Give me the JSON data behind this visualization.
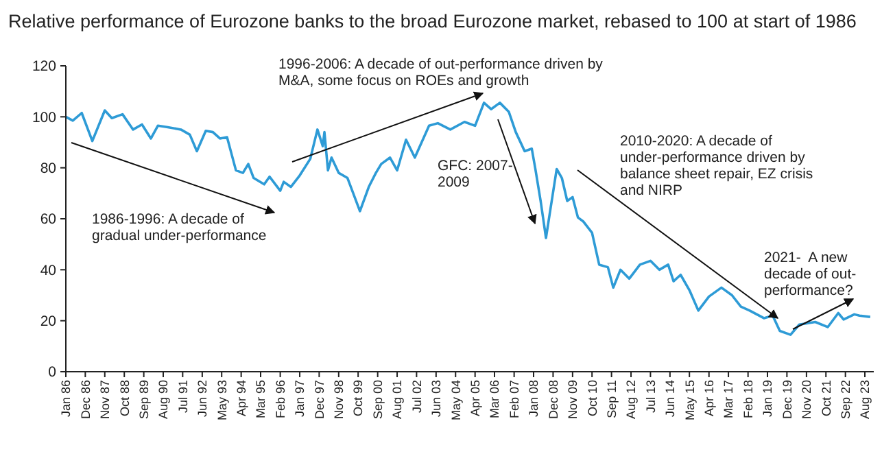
{
  "chart_data": {
    "type": "line",
    "title": "Relative performance of Eurozone banks to the broad Eurozone market, rebased to 100 at start of 1986",
    "x": [
      "1986-01",
      "1986-05",
      "1986-10",
      "1987-04",
      "1987-11",
      "1988-03",
      "1988-09",
      "1989-03",
      "1989-08",
      "1990-01",
      "1990-05",
      "1990-10",
      "1991-06",
      "1991-11",
      "1992-03",
      "1992-08",
      "1992-12",
      "1993-04",
      "1993-08",
      "1994-01",
      "1994-05",
      "1994-08",
      "1994-11",
      "1995-05",
      "1995-08",
      "1996-02",
      "1996-04",
      "1996-08",
      "1997-01",
      "1997-07",
      "1997-11",
      "1998-02",
      "1998-03",
      "1998-05",
      "1998-07",
      "1998-11",
      "1999-04",
      "1999-11",
      "2000-04",
      "2000-08",
      "2000-11",
      "2001-04",
      "2001-08",
      "2002-01",
      "2002-06",
      "2003-02",
      "2003-07",
      "2004-02",
      "2004-10",
      "2005-04",
      "2005-09",
      "2006-01",
      "2006-06",
      "2006-11",
      "2007-03",
      "2007-08",
      "2007-12",
      "2008-02",
      "2008-05",
      "2008-08",
      "2008-10",
      "2009-02",
      "2009-05",
      "2009-08",
      "2009-11",
      "2010-02",
      "2010-05",
      "2010-10",
      "2011-02",
      "2011-07",
      "2011-10",
      "2012-02",
      "2012-07",
      "2013-01",
      "2013-07",
      "2013-12",
      "2014-05",
      "2014-08",
      "2014-12",
      "2015-05",
      "2015-10",
      "2016-04",
      "2016-11",
      "2017-05",
      "2017-10",
      "2018-03",
      "2018-11",
      "2019-04",
      "2019-08",
      "2020-02",
      "2020-07",
      "2021-04",
      "2021-11",
      "2022-05",
      "2022-08",
      "2023-02",
      "2023-05",
      "2023-11"
    ],
    "series": [
      {
        "color": "#2e9bd6",
        "values": [
          100,
          98.5,
          101.5,
          90.5,
          102.5,
          99.5,
          101,
          95,
          97,
          91.5,
          96.5,
          96,
          95,
          93,
          86.5,
          94.5,
          94,
          91.5,
          92,
          79,
          78,
          81.5,
          76,
          73.5,
          76.5,
          71,
          74.5,
          72.5,
          77,
          83.5,
          95,
          88.5,
          94,
          79,
          84,
          78,
          76,
          63,
          72.5,
          78,
          81.5,
          84,
          79,
          91,
          84,
          96.5,
          97.5,
          95,
          98,
          96.5,
          105.5,
          103,
          105.5,
          102,
          94,
          86.5,
          87.5,
          79.5,
          67,
          52.5,
          61.5,
          79.5,
          76,
          67,
          68.5,
          60.5,
          59,
          54.5,
          42,
          41,
          33,
          40,
          36.5,
          42,
          43.5,
          40,
          42,
          35.5,
          38,
          32,
          24,
          29.5,
          33,
          30,
          25.5,
          24,
          21,
          22,
          16,
          14.5,
          18.5,
          19.5,
          17.5,
          23,
          20.5,
          22.5,
          22,
          21.5
        ]
      }
    ],
    "xlim": [
      "1986-01",
      "2024-01"
    ],
    "xticks": [
      {
        "value": "1986-01",
        "label": "Jan 86"
      },
      {
        "value": "1986-12",
        "label": "Dec 86"
      },
      {
        "value": "1987-11",
        "label": "Nov 87"
      },
      {
        "value": "1988-10",
        "label": "Oct 88"
      },
      {
        "value": "1989-09",
        "label": "Sep 89"
      },
      {
        "value": "1990-08",
        "label": "Aug 90"
      },
      {
        "value": "1991-07",
        "label": "Jul 91"
      },
      {
        "value": "1992-06",
        "label": "Jun 92"
      },
      {
        "value": "1993-05",
        "label": "May 93"
      },
      {
        "value": "1994-04",
        "label": "Apr 94"
      },
      {
        "value": "1995-03",
        "label": "Mar 95"
      },
      {
        "value": "1996-02",
        "label": "Feb 96"
      },
      {
        "value": "1997-01",
        "label": "Jan 97"
      },
      {
        "value": "1997-12",
        "label": "Dec 97"
      },
      {
        "value": "1998-11",
        "label": "Nov 98"
      },
      {
        "value": "1999-10",
        "label": "Oct 99"
      },
      {
        "value": "2000-09",
        "label": "Sep 00"
      },
      {
        "value": "2001-08",
        "label": "Aug 01"
      },
      {
        "value": "2002-07",
        "label": "Jul 02"
      },
      {
        "value": "2003-06",
        "label": "Jun 03"
      },
      {
        "value": "2004-05",
        "label": "May 04"
      },
      {
        "value": "2005-04",
        "label": "Apr 05"
      },
      {
        "value": "2006-03",
        "label": "Mar 06"
      },
      {
        "value": "2007-02",
        "label": "Feb 07"
      },
      {
        "value": "2008-01",
        "label": "Jan 08"
      },
      {
        "value": "2008-12",
        "label": "Dec 08"
      },
      {
        "value": "2009-11",
        "label": "Nov 09"
      },
      {
        "value": "2010-10",
        "label": "Oct 10"
      },
      {
        "value": "2011-09",
        "label": "Sep 11"
      },
      {
        "value": "2012-08",
        "label": "Aug 12"
      },
      {
        "value": "2013-07",
        "label": "Jul 13"
      },
      {
        "value": "2014-06",
        "label": "Jun 14"
      },
      {
        "value": "2015-05",
        "label": "May 15"
      },
      {
        "value": "2016-04",
        "label": "Apr 16"
      },
      {
        "value": "2017-03",
        "label": "Mar 17"
      },
      {
        "value": "2018-02",
        "label": "Feb 18"
      },
      {
        "value": "2019-01",
        "label": "Jan 19"
      },
      {
        "value": "2019-12",
        "label": "Dec 19"
      },
      {
        "value": "2020-11",
        "label": "Nov 20"
      },
      {
        "value": "2021-10",
        "label": "Oct 21"
      },
      {
        "value": "2022-09",
        "label": "Sep 22"
      },
      {
        "value": "2023-08",
        "label": "Aug 23"
      }
    ],
    "ylim": [
      0,
      120
    ],
    "yticks": [
      0,
      20,
      40,
      60,
      80,
      100,
      120
    ],
    "grid": false,
    "marker": "none",
    "line_style": "solid",
    "annotations": [
      "1986-1996: A decade of gradual under-performance",
      "1996-2006: A decade of out-performance driven by M&A, some focus on ROEs and growth",
      "GFC: 2007-2009",
      "2010-2020: A decade of under-performance driven by balance sheet repair, EZ crisis and NIRP",
      "2021-  A new decade of out-performance?"
    ]
  }
}
